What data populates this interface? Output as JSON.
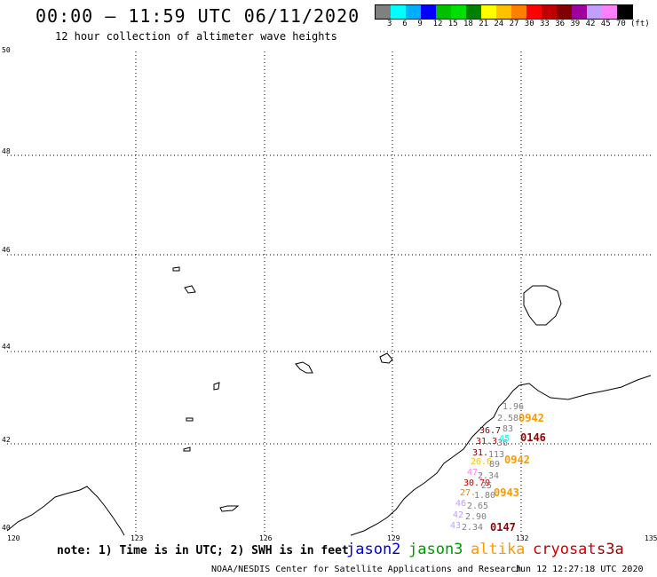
{
  "header": {
    "title": "00:00 – 11:59 UTC 06/11/2020",
    "subtitle": "12 hour collection of altimeter wave heights"
  },
  "colorbar": {
    "colors": [
      "#808080",
      "#00ffff",
      "#00b0ff",
      "#0000ff",
      "#00c000",
      "#00e000",
      "#008000",
      "#ffff00",
      "#ffc000",
      "#ff8000",
      "#ff0000",
      "#c00000",
      "#800000",
      "#a000a0",
      "#c0a0ff",
      "#ff80ff",
      "#000000"
    ],
    "ticks": [
      "3",
      "6",
      "9",
      "12",
      "15",
      "18",
      "21",
      "24",
      "27",
      "30",
      "33",
      "36",
      "39",
      "42",
      "45",
      "70"
    ],
    "unit": "(ft)"
  },
  "axes": {
    "lat_labels": [
      "50",
      "48",
      "46",
      "44",
      "42",
      "40"
    ],
    "lon_labels": [
      "120",
      "123",
      "126",
      "129",
      "132",
      "135"
    ]
  },
  "footer": {
    "note": "note: 1) Time is in UTC; 2) SWH is in feet",
    "credit": "NOAA/NESDIS Center for Satellite Applications and Research",
    "generated": "Jun 12 12:27:18 UTC 2020"
  },
  "satellites": [
    {
      "name": "jason2",
      "color": "#0000cc"
    },
    {
      "name": "jason3",
      "color": "#009900"
    },
    {
      "name": "altika",
      "color": "#ff9900"
    },
    {
      "name": "cryosat",
      "color": "#cc0000"
    },
    {
      "name": "s3a",
      "color": "#990000"
    }
  ],
  "passes": [
    {
      "label": "0942",
      "color": "#ff9900"
    },
    {
      "label": "0146",
      "color": "#990000"
    },
    {
      "label": "0942",
      "color": "#ff9900"
    },
    {
      "label": "0943",
      "color": "#ff9900"
    },
    {
      "label": "0147",
      "color": "#990000"
    }
  ],
  "points": [
    {
      "t": "1.96",
      "color": "#808080"
    },
    {
      "t": "2.58",
      "color": "#808080"
    },
    {
      "t": "36.7",
      "color": "#800000"
    },
    {
      "t": "83",
      "color": "#808080"
    },
    {
      "t": "31.3",
      "color": "#c00000"
    },
    {
      "t": "36",
      "color": "#808080"
    },
    {
      "t": "45",
      "color": "#00ffff"
    },
    {
      "t": "31.",
      "color": "#800000"
    },
    {
      "t": "113",
      "color": "#808080"
    },
    {
      "t": "26.6",
      "color": "#ffc000"
    },
    {
      "t": "89",
      "color": "#808080"
    },
    {
      "t": "47.",
      "color": "#ff80ff"
    },
    {
      "t": "2.34",
      "color": "#808080"
    },
    {
      "t": "30.79",
      "color": "#c00000"
    },
    {
      "t": "25",
      "color": "#808080"
    },
    {
      "t": "27.",
      "color": "#ff8000"
    },
    {
      "t": "1.80",
      "color": "#808080"
    },
    {
      "t": "46",
      "color": "#c0a0ff"
    },
    {
      "t": "2.65",
      "color": "#808080"
    },
    {
      "t": "42",
      "color": "#c0a0ff"
    },
    {
      "t": "2.90",
      "color": "#808080"
    },
    {
      "t": "43",
      "color": "#c0a0ff"
    },
    {
      "t": "2.34",
      "color": "#808080"
    }
  ]
}
